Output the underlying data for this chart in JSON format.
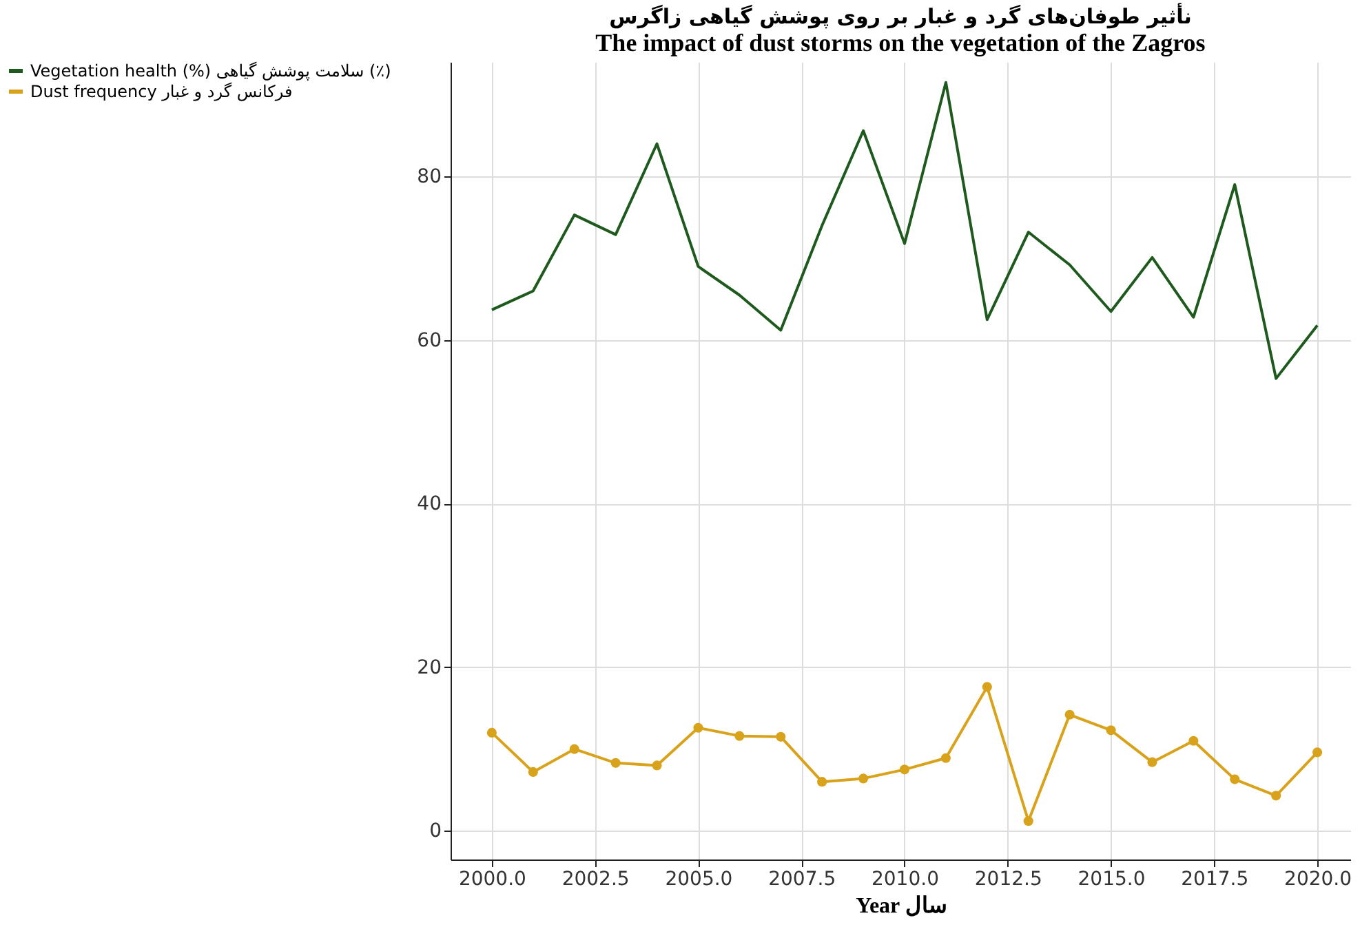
{
  "chart_data": {
    "type": "line",
    "title": "نأثیر طوفان‌های گرد و غبار بر روی پوشش گیاهی زاگرس",
    "subtitle": "The impact of dust storms on the vegetation of the Zagros",
    "xlabel": "Year سال",
    "x": [
      2000,
      2001,
      2002,
      2003,
      2004,
      2005,
      2006,
      2007,
      2008,
      2009,
      2010,
      2011,
      2012,
      2013,
      2014,
      2015,
      2016,
      2017,
      2018,
      2019,
      2020
    ],
    "series": [
      {
        "name": "Vegetation health (%) سلامت پوشش گیاهی (٪)",
        "color": "#1e5a1e",
        "marker": "none",
        "values": [
          63.7,
          66,
          75.3,
          72.9,
          84,
          69,
          65.5,
          61.2,
          74,
          85.6,
          71.8,
          91.5,
          62.5,
          73.2,
          69.2,
          63.5,
          70.1,
          62.8,
          79,
          55.3,
          61.8
        ]
      },
      {
        "name": "Dust frequency فرکانس گرد و غبار",
        "color": "#d9a21b",
        "marker": "circle",
        "values": [
          12,
          7.2,
          10,
          8.3,
          8,
          12.6,
          11.6,
          11.5,
          6,
          6.4,
          7.5,
          8.9,
          17.6,
          1.2,
          14.2,
          12.3,
          8.4,
          11,
          6.3,
          4.3,
          9.6
        ]
      }
    ],
    "xlim": [
      1999,
      2020.8
    ],
    "xticks": [
      {
        "value": 2000,
        "label": "2000.0"
      },
      {
        "value": 2002.5,
        "label": "2002.5"
      },
      {
        "value": 2005,
        "label": "2005.0"
      },
      {
        "value": 2007.5,
        "label": "2007.5"
      },
      {
        "value": 2010,
        "label": "2010.0"
      },
      {
        "value": 2012.5,
        "label": "2012.5"
      },
      {
        "value": 2015,
        "label": "2015.0"
      },
      {
        "value": 2017.5,
        "label": "2017.5"
      },
      {
        "value": 2020,
        "label": "2020.0"
      }
    ],
    "ylim": [
      -3.5,
      94
    ],
    "yticks": [
      0,
      20,
      40,
      60,
      80
    ],
    "grid": true,
    "legend": "left",
    "line_style": "solid"
  }
}
